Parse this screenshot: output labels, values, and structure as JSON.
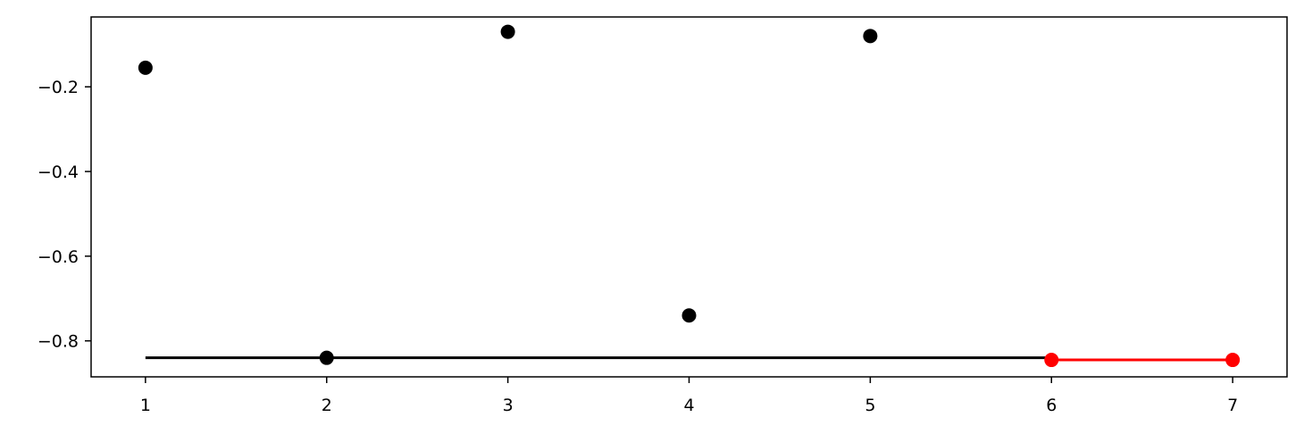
{
  "chart_data": {
    "type": "scatter",
    "title": "",
    "xlabel": "",
    "ylabel": "",
    "xlim": [
      0.7,
      7.3
    ],
    "ylim": [
      -0.885,
      -0.035
    ],
    "x_ticks": [
      1,
      2,
      3,
      4,
      5,
      6,
      7
    ],
    "x_tick_labels": [
      "1",
      "2",
      "3",
      "4",
      "5",
      "6",
      "7"
    ],
    "y_ticks": [
      -0.2,
      -0.4,
      -0.6,
      -0.8
    ],
    "y_tick_labels": [
      "−0.2",
      "−0.4",
      "−0.6",
      "−0.8"
    ],
    "grid": false,
    "series": [
      {
        "style": "points",
        "color": "#000000",
        "x": [
          1,
          2,
          3,
          4,
          5
        ],
        "y": [
          -0.155,
          -0.84,
          -0.07,
          -0.74,
          -0.08
        ]
      },
      {
        "style": "line",
        "color": "#000000",
        "x": [
          1,
          6
        ],
        "y": [
          -0.84,
          -0.84
        ]
      },
      {
        "style": "line-points",
        "color": "#ff0000",
        "x": [
          6,
          7
        ],
        "y": [
          -0.845,
          -0.845
        ]
      }
    ]
  }
}
